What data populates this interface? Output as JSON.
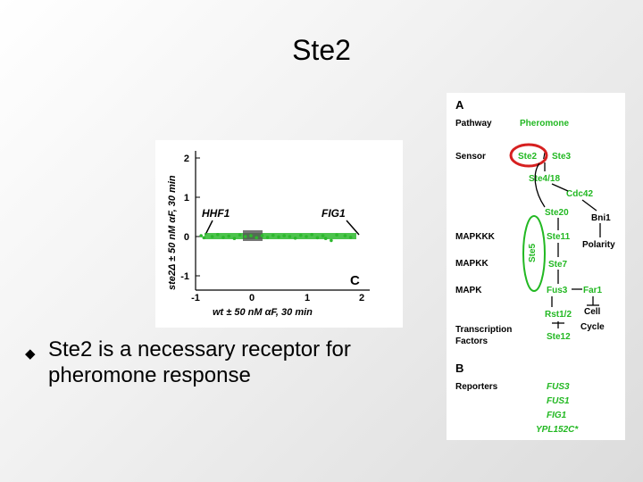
{
  "slide": {
    "title": "Ste2",
    "bullet_marker": "◆",
    "bullet_text": "Ste2 is a necessary receptor for pheromone response"
  },
  "scatter_figure": {
    "panel_label": "C",
    "y_axis_label": "ste2Δ ± 50 nM αF, 30 min",
    "x_axis_label": "wt ± 50    nM αF, 30 min",
    "y_ticks": [
      "2",
      "1",
      "0",
      "-1"
    ],
    "x_ticks": [
      "-1",
      "0",
      "1",
      "2"
    ],
    "annotation_left": "HHF1",
    "annotation_right": "FIG1",
    "point_color": "#2db82d",
    "center_color": "#555555"
  },
  "chart_data": {
    "type": "scatter",
    "title": "",
    "xlabel": "wt ± 50 nM αF, 30 min",
    "ylabel": "ste2Δ ± 50 nM αF, 30 min",
    "xlim": [
      -1,
      2
    ],
    "ylim": [
      -1.5,
      2
    ],
    "series": [
      {
        "name": "",
        "points": [
          [
            -0.9,
            0.02
          ],
          [
            -0.85,
            -0.03
          ],
          [
            -0.7,
            0.0
          ],
          [
            -0.6,
            0.05
          ],
          [
            -0.5,
            -0.02
          ],
          [
            -0.4,
            0.01
          ],
          [
            -0.3,
            -0.05
          ],
          [
            -0.2,
            0.04
          ],
          [
            -0.1,
            0.0
          ],
          [
            0.0,
            0.02
          ],
          [
            0.1,
            -0.03
          ],
          [
            0.2,
            0.02
          ],
          [
            0.3,
            -0.02
          ],
          [
            0.4,
            0.03
          ],
          [
            0.5,
            -0.01
          ],
          [
            0.6,
            0.02
          ],
          [
            0.7,
            0.0
          ],
          [
            0.8,
            -0.04
          ],
          [
            0.9,
            0.03
          ],
          [
            1.0,
            0.0
          ],
          [
            1.1,
            0.05
          ],
          [
            1.2,
            -0.03
          ],
          [
            1.3,
            0.02
          ],
          [
            1.35,
            -0.05
          ],
          [
            1.45,
            -0.1
          ],
          [
            1.55,
            0.04
          ],
          [
            1.7,
            0.02
          ],
          [
            1.8,
            -0.02
          ]
        ]
      }
    ],
    "annotations": [
      "HHF1",
      "FIG1"
    ]
  },
  "pathway_figure": {
    "panel_a": "A",
    "panel_b": "B",
    "row_labels": {
      "pathway": "Pathway",
      "sensor": "Sensor",
      "mapkkk": "MAPKKK",
      "mapkk": "MAPKK",
      "mapk": "MAPK",
      "transcription": "Transcription",
      "factors": "Factors",
      "reporters": "Reporters"
    },
    "nodes": {
      "pheromone": "Pheromone",
      "ste2": "Ste2",
      "ste3_sep": "/",
      "ste3": "Ste3",
      "ste4_18": "Ste4/18",
      "cdc42": "Cdc42",
      "ste20": "Ste20",
      "bni1": "Bni1",
      "ste11": "Ste11",
      "polarity": "Polarity",
      "ste5": "Ste5",
      "ste7": "Ste7",
      "fus3": "Fus3",
      "far1": "Far1",
      "rst12": "Rst1/2",
      "cell": "Cell",
      "cycle": "Cycle",
      "ste12": "Ste12"
    },
    "reporters": [
      "FUS3",
      "FUS1",
      "FIG1",
      "YPL152C*"
    ],
    "node_color": "#22b822",
    "highlight_color": "#d62020"
  }
}
